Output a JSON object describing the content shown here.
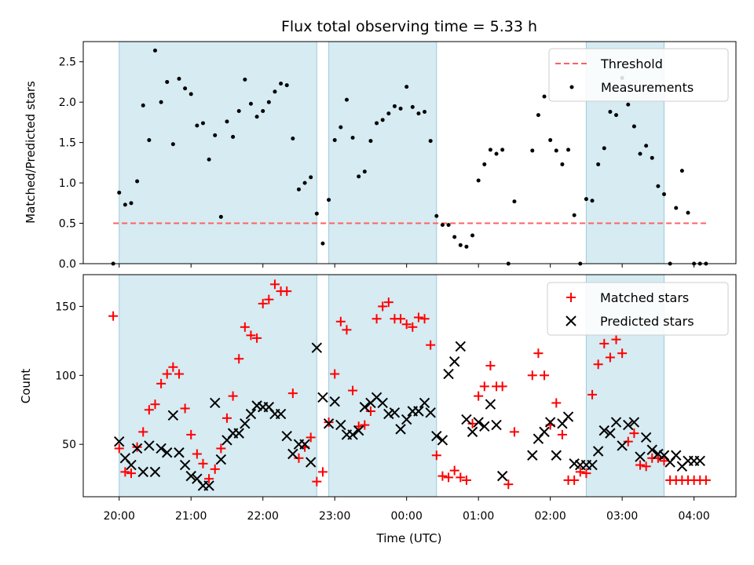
{
  "chart_data": [
    {
      "type": "scatter",
      "title": "Flux total observing time = 5.33 h",
      "ylabel": "Matched/Predicted stars",
      "xlim": [
        "19:30",
        "04:35"
      ],
      "ylim": [
        0,
        2.75
      ],
      "yticks": [
        0.0,
        0.5,
        1.0,
        1.5,
        2.0,
        2.5
      ],
      "ytick_labels": [
        "0.0",
        "0.5",
        "1.0",
        "1.5",
        "2.0",
        "2.5"
      ],
      "shaded_intervals": [
        [
          "20:00",
          "22:45"
        ],
        [
          "22:55",
          "00:25"
        ],
        [
          "02:30",
          "03:35"
        ]
      ],
      "legend": {
        "position": "upper right",
        "entries": [
          "Threshold",
          "Measurements"
        ]
      },
      "threshold": {
        "name": "Threshold",
        "value": 0.5,
        "x_range": [
          "19:55",
          "04:10"
        ],
        "color": "#ff6060",
        "style": "dashed"
      },
      "series": [
        {
          "name": "Measurements",
          "color": "#000000",
          "x": [
            "19:55",
            "20:00",
            "20:05",
            "20:10",
            "20:15",
            "20:20",
            "20:25",
            "20:30",
            "20:35",
            "20:40",
            "20:45",
            "20:50",
            "20:55",
            "21:00",
            "21:05",
            "21:10",
            "21:15",
            "21:20",
            "21:25",
            "21:30",
            "21:35",
            "21:40",
            "21:45",
            "21:50",
            "21:55",
            "22:00",
            "22:05",
            "22:10",
            "22:15",
            "22:20",
            "22:25",
            "22:30",
            "22:35",
            "22:40",
            "22:45",
            "22:50",
            "22:55",
            "23:00",
            "23:05",
            "23:10",
            "23:15",
            "23:20",
            "23:25",
            "23:30",
            "23:35",
            "23:40",
            "23:45",
            "23:50",
            "23:55",
            "00:00",
            "00:05",
            "00:10",
            "00:15",
            "00:20",
            "00:25",
            "00:30",
            "00:35",
            "00:40",
            "00:45",
            "00:50",
            "00:55",
            "01:00",
            "01:05",
            "01:10",
            "01:15",
            "01:20",
            "01:25",
            "01:30",
            "01:45",
            "01:50",
            "01:55",
            "02:00",
            "02:05",
            "02:10",
            "02:15",
            "02:20",
            "02:25",
            "02:30",
            "02:35",
            "02:40",
            "02:45",
            "02:50",
            "02:55",
            "03:00",
            "03:05",
            "03:10",
            "03:15",
            "03:20",
            "03:25",
            "03:30",
            "03:35",
            "03:40",
            "03:45",
            "03:50",
            "03:55",
            "04:00",
            "04:05",
            "04:10"
          ],
          "y": [
            0.0,
            0.88,
            0.73,
            0.75,
            1.02,
            1.96,
            1.53,
            2.64,
            2.0,
            2.25,
            1.48,
            2.29,
            2.17,
            2.1,
            1.71,
            1.74,
            1.29,
            1.59,
            0.58,
            1.76,
            1.57,
            1.89,
            2.28,
            1.98,
            1.82,
            1.89,
            2.0,
            2.13,
            2.23,
            2.21,
            1.55,
            0.92,
            1.0,
            1.07,
            0.62,
            0.25,
            0.79,
            1.53,
            1.69,
            2.03,
            1.56,
            1.08,
            1.14,
            1.52,
            1.74,
            1.78,
            1.86,
            1.95,
            1.92,
            2.19,
            1.94,
            1.86,
            1.88,
            1.52,
            0.59,
            0.48,
            0.48,
            0.33,
            0.23,
            0.21,
            0.35,
            1.03,
            1.23,
            1.41,
            1.36,
            1.41,
            0.0,
            0.77,
            1.4,
            1.84,
            2.07,
            1.53,
            1.4,
            1.23,
            1.41,
            0.6,
            0.0,
            0.8,
            0.78,
            1.23,
            1.43,
            1.88,
            1.84,
            2.3,
            1.97,
            1.7,
            1.36,
            1.46,
            1.31,
            0.96,
            0.86,
            0.0,
            0.69,
            1.15,
            0.63,
            0.0,
            0.0,
            0.0
          ]
        }
      ]
    },
    {
      "type": "scatter",
      "xlabel": "Time (UTC)",
      "ylabel": "Count",
      "xlim": [
        "19:30",
        "04:35"
      ],
      "ylim": [
        12,
        173
      ],
      "xticks": [
        "20:00",
        "21:00",
        "22:00",
        "23:00",
        "00:00",
        "01:00",
        "02:00",
        "03:00",
        "04:00"
      ],
      "yticks": [
        50,
        100,
        150
      ],
      "ytick_labels": [
        "50",
        "100",
        "150"
      ],
      "shaded_intervals": [
        [
          "20:00",
          "22:45"
        ],
        [
          "22:55",
          "00:25"
        ],
        [
          "02:30",
          "03:35"
        ]
      ],
      "legend": {
        "position": "upper right",
        "entries": [
          "Matched stars",
          "Predicted stars"
        ]
      },
      "series": [
        {
          "name": "Matched stars",
          "marker": "+",
          "color": "#ff0000",
          "x": [
            "19:55",
            "20:00",
            "20:05",
            "20:10",
            "20:15",
            "20:20",
            "20:25",
            "20:30",
            "20:35",
            "20:40",
            "20:45",
            "20:50",
            "20:55",
            "21:00",
            "21:05",
            "21:10",
            "21:15",
            "21:20",
            "21:25",
            "21:30",
            "21:35",
            "21:40",
            "21:45",
            "21:50",
            "21:55",
            "22:00",
            "22:05",
            "22:10",
            "22:15",
            "22:20",
            "22:25",
            "22:30",
            "22:35",
            "22:40",
            "22:45",
            "22:50",
            "22:55",
            "23:00",
            "23:05",
            "23:10",
            "23:15",
            "23:20",
            "23:25",
            "23:30",
            "23:35",
            "23:40",
            "23:45",
            "23:50",
            "23:55",
            "00:00",
            "00:05",
            "00:10",
            "00:15",
            "00:20",
            "00:25",
            "00:30",
            "00:35",
            "00:40",
            "00:45",
            "00:50",
            "00:55",
            "01:00",
            "01:05",
            "01:10",
            "01:15",
            "01:20",
            "01:25",
            "01:30",
            "01:45",
            "01:50",
            "01:55",
            "02:00",
            "02:05",
            "02:10",
            "02:15",
            "02:20",
            "02:25",
            "02:30",
            "02:35",
            "02:40",
            "02:45",
            "02:50",
            "02:55",
            "03:00",
            "03:05",
            "03:10",
            "03:15",
            "03:20",
            "03:25",
            "03:30",
            "03:35",
            "03:40",
            "03:45",
            "03:50",
            "03:55",
            "04:00",
            "04:05",
            "04:10"
          ],
          "y": [
            143,
            47,
            30,
            29,
            48,
            59,
            75,
            79,
            94,
            101,
            106,
            101,
            76,
            57,
            43,
            36,
            25,
            32,
            47,
            69,
            85,
            112,
            135,
            129,
            127,
            152,
            155,
            166,
            161,
            161,
            87,
            40,
            48,
            55,
            23,
            30,
            66,
            101,
            139,
            133,
            89,
            63,
            64,
            74,
            141,
            150,
            153,
            141,
            141,
            137,
            135,
            142,
            141,
            122,
            42,
            27,
            26,
            31,
            26,
            24,
            65,
            85,
            92,
            107,
            92,
            92,
            21,
            59,
            100,
            116,
            100,
            64,
            80,
            57,
            24,
            24,
            30,
            29,
            86,
            108,
            123,
            113,
            126,
            116,
            52,
            58,
            35,
            34,
            40,
            40,
            38,
            24,
            24,
            24,
            24,
            24,
            24,
            24
          ]
        },
        {
          "name": "Predicted stars",
          "marker": "x",
          "color": "#000000",
          "x": [
            "20:00",
            "20:05",
            "20:10",
            "20:15",
            "20:20",
            "20:25",
            "20:30",
            "20:35",
            "20:40",
            "20:45",
            "20:50",
            "20:55",
            "21:00",
            "21:05",
            "21:10",
            "21:15",
            "21:20",
            "21:25",
            "21:30",
            "21:35",
            "21:40",
            "21:45",
            "21:50",
            "21:55",
            "22:00",
            "22:05",
            "22:10",
            "22:15",
            "22:20",
            "22:25",
            "22:30",
            "22:35",
            "22:40",
            "22:45",
            "22:50",
            "22:55",
            "23:00",
            "23:05",
            "23:10",
            "23:15",
            "23:20",
            "23:25",
            "23:30",
            "23:35",
            "23:40",
            "23:45",
            "23:50",
            "23:55",
            "00:00",
            "00:05",
            "00:10",
            "00:15",
            "00:20",
            "00:25",
            "00:30",
            "00:35",
            "00:40",
            "00:45",
            "00:50",
            "00:55",
            "01:00",
            "01:05",
            "01:10",
            "01:15",
            "01:20",
            "01:45",
            "01:50",
            "01:55",
            "02:00",
            "02:05",
            "02:10",
            "02:15",
            "02:20",
            "02:25",
            "02:30",
            "02:35",
            "02:40",
            "02:45",
            "02:50",
            "02:55",
            "03:00",
            "03:05",
            "03:10",
            "03:15",
            "03:20",
            "03:25",
            "03:30",
            "03:35",
            "03:40",
            "03:45",
            "03:50",
            "03:55",
            "04:00",
            "04:05"
          ],
          "y": [
            52,
            40,
            35,
            47,
            30,
            49,
            30,
            47,
            44,
            71,
            44,
            35,
            27,
            25,
            20,
            20,
            80,
            39,
            53,
            58,
            58,
            65,
            72,
            78,
            77,
            77,
            72,
            72,
            56,
            43,
            50,
            50,
            37,
            120,
            84,
            65,
            81,
            64,
            57,
            57,
            60,
            77,
            80,
            84,
            80,
            72,
            73,
            61,
            68,
            74,
            74,
            80,
            73,
            56,
            53,
            101,
            110,
            121,
            68,
            59,
            66,
            63,
            79,
            64,
            27,
            42,
            54,
            59,
            66,
            42,
            65,
            70,
            36,
            35,
            35,
            35,
            45,
            60,
            58,
            66,
            49,
            64,
            66,
            41,
            55,
            46,
            43,
            42,
            37,
            42,
            34,
            38,
            38,
            38
          ]
        }
      ]
    }
  ]
}
